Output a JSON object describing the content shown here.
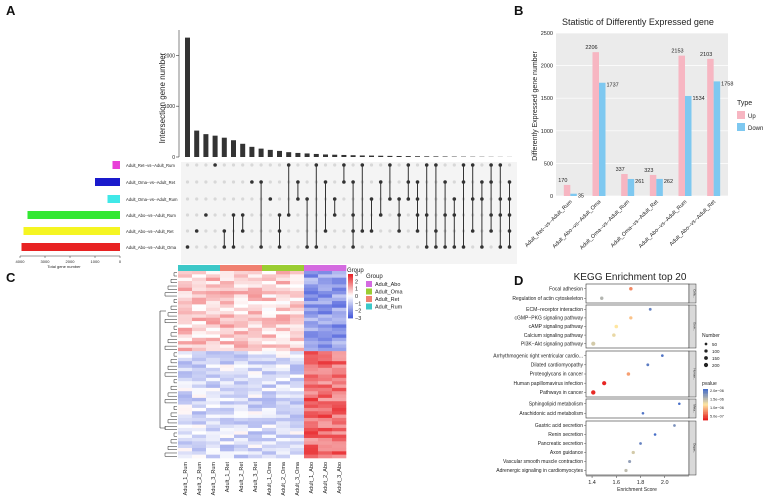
{
  "panels": {
    "a": "A",
    "b": "B",
    "c": "C",
    "d": "D"
  },
  "colors": {
    "up": "#f7b6c2",
    "down": "#7ec8f0",
    "heat_high": "#e8262a",
    "heat_mid": "#ffffff",
    "heat_low": "#4a5ddb",
    "group_abo": "#d46be0",
    "group_oma": "#9acd32",
    "group_ret": "#f08070",
    "group_rum": "#3cc8c8"
  },
  "upset": {
    "ylabel": "Intersection gene number",
    "y_ticks": [
      "0",
      "1000",
      "2000"
    ],
    "ymax": 2500,
    "bar_values": [
      2350,
      520,
      450,
      420,
      380,
      330,
      260,
      200,
      165,
      140,
      120,
      95,
      80,
      70,
      60,
      50,
      45,
      40,
      35,
      30,
      28,
      25,
      22,
      20,
      18,
      15,
      13,
      12,
      10,
      8,
      7,
      6,
      5,
      4,
      3,
      2
    ],
    "sets": [
      {
        "name": "Adult_Ret--vs--Adult_Rum",
        "size": 300,
        "color": "#e83fd8"
      },
      {
        "name": "Adult_Oma--vs--Adult_Ret",
        "size": 1000,
        "color": "#1a1acc"
      },
      {
        "name": "Adult_Oma--vs--Adult_Rum",
        "size": 500,
        "color": "#40e8e8"
      },
      {
        "name": "Adult_Abo--vs--Adult_Rum",
        "size": 3700,
        "color": "#33e833"
      },
      {
        "name": "Adult_Abo--vs--Adult_Ret",
        "size": 3860,
        "color": "#f5f522"
      },
      {
        "name": "Adult_Abo--vs--Adult_Oma",
        "size": 3940,
        "color": "#e82222"
      }
    ],
    "set_axis_ticks": [
      "4000",
      "3000",
      "2000",
      "1000",
      "0"
    ],
    "set_axis_label": "Total gene number"
  },
  "chart_data": [
    {
      "type": "bar",
      "title": "Statistic of Differently Expressed gene",
      "ylabel": "Differently Expressed gene number",
      "xlabel": "",
      "ylim": [
        0,
        2500
      ],
      "y_ticks": [
        "0",
        "500",
        "1000",
        "1500",
        "2000",
        "2500"
      ],
      "categories": [
        "Adult_Ret--vs--Adult_Rum",
        "Adult_Abo--vs--Adult_Oma",
        "Adult_Oma--vs--Adult_Rum",
        "Adult_Oma--vs--Adult_Ret",
        "Adult_Abo--vs--Adult_Rum",
        "Adult_Abo--vs--Adult_Ret"
      ],
      "series": [
        {
          "name": "Up",
          "values": [
            170,
            2206,
            337,
            323,
            2153,
            2103
          ]
        },
        {
          "name": "Down",
          "values": [
            35,
            1737,
            261,
            262,
            1534,
            1758
          ]
        }
      ],
      "legend_title": "Type",
      "legend_position": "right"
    },
    {
      "type": "heatmap",
      "columns": [
        "Adult_1_Rum",
        "Adult_2_Rum",
        "Adult_3_Rum",
        "Adult_1_Ret",
        "Adult_2_Ret",
        "Adult_3_Ret",
        "Adult_1_Oma",
        "Adult_2_Oma",
        "Adult_3_Oma",
        "Adult_1_Abo",
        "Adult_2_Abo",
        "Adult_3_Abo"
      ],
      "column_groups": [
        "Adult_Rum",
        "Adult_Rum",
        "Adult_Rum",
        "Adult_Ret",
        "Adult_Ret",
        "Adult_Ret",
        "Adult_Oma",
        "Adult_Oma",
        "Adult_Oma",
        "Adult_Abo",
        "Adult_Abo",
        "Adult_Abo"
      ],
      "scale_ticks": [
        "3",
        "2",
        "1",
        "0",
        "−1",
        "−2",
        "−3"
      ],
      "scale_range": [
        -3,
        3
      ],
      "annotation_label": "Group",
      "legend_title": "Group",
      "legend_items": [
        "Adult_Abo",
        "Adult_Oma",
        "Adult_Ret",
        "Adult_Rum"
      ]
    },
    {
      "type": "scatter",
      "title": "KEGG Enrichment top 20",
      "xlabel": "Enrichment Score",
      "xlim": [
        1.35,
        2.2
      ],
      "x_ticks": [
        "1.4",
        "1.6",
        "1.8",
        "2.0"
      ],
      "categories": [
        {
          "name": "Cellular Processes",
          "strip": "Cellu..",
          "terms": [
            {
              "term": "Focal adhesion",
              "score": 1.72,
              "count": 120,
              "p": 1e-06
            },
            {
              "term": "Regulation of actin cytoskeleton",
              "score": 1.48,
              "count": 110,
              "p": 2.5e-06
            }
          ]
        },
        {
          "name": "Environmental Information Processing",
          "strip": "Envir..",
          "terms": [
            {
              "term": "ECM−receptor interaction",
              "score": 1.88,
              "count": 60,
              "p": 3.2e-06
            },
            {
              "term": "cGMP−PKG signaling pathway",
              "score": 1.72,
              "count": 100,
              "p": 1.5e-06
            },
            {
              "term": "cAMP signaling pathway",
              "score": 1.6,
              "count": 130,
              "p": 1.8e-06
            },
            {
              "term": "Calcium signaling pathway",
              "score": 1.58,
              "count": 120,
              "p": 2e-06
            },
            {
              "term": "PI3K−Akt signaling pathway",
              "score": 1.41,
              "count": 200,
              "p": 2.2e-06
            }
          ]
        },
        {
          "name": "Human Diseases",
          "strip": "Human..",
          "terms": [
            {
              "term": "Arrhythmogenic right ventricular cardio...",
              "score": 1.98,
              "count": 50,
              "p": 3.4e-06
            },
            {
              "term": "Dilated cardiomyopathy",
              "score": 1.86,
              "count": 60,
              "p": 3.3e-06
            },
            {
              "term": "Proteoglycans in cancer",
              "score": 1.7,
              "count": 120,
              "p": 1.2e-06
            },
            {
              "term": "Human papillomavirus infection",
              "score": 1.5,
              "count": 200,
              "p": 1.6e-07
            },
            {
              "term": "Pathways in cancer",
              "score": 1.41,
              "count": 230,
              "p": 2e-07
            }
          ]
        },
        {
          "name": "Metabolism",
          "strip": "Meta..",
          "terms": [
            {
              "term": "Sphingolipid metabolism",
              "score": 2.12,
              "count": 40,
              "p": 3.5e-06
            },
            {
              "term": "Arachidonic acid metabolism",
              "score": 1.82,
              "count": 45,
              "p": 3.4e-06
            }
          ]
        },
        {
          "name": "Organismal Systems",
          "strip": "Organ..",
          "terms": [
            {
              "term": "Gastric acid secretion",
              "score": 2.08,
              "count": 50,
              "p": 3e-06
            },
            {
              "term": "Renin secretion",
              "score": 1.92,
              "count": 45,
              "p": 3.5e-06
            },
            {
              "term": "Pancreatic secretion",
              "score": 1.8,
              "count": 55,
              "p": 3.2e-06
            },
            {
              "term": "Axon guidance",
              "score": 1.74,
              "count": 100,
              "p": 2.2e-06
            },
            {
              "term": "Vascular smooth muscle contraction",
              "score": 1.71,
              "count": 80,
              "p": 2.8e-06
            },
            {
              "term": "Adrenergic signaling in cardiomyocytes",
              "score": 1.68,
              "count": 90,
              "p": 2.4e-06
            }
          ]
        }
      ],
      "size_legend_title": "Number",
      "size_legend": [
        "50",
        "100",
        "150",
        "200"
      ],
      "color_legend_title": "pvalue",
      "color_legend_ticks": [
        "2.0e−06",
        "1.5e−06",
        "1.0e−06",
        "5.0e−07"
      ]
    }
  ]
}
